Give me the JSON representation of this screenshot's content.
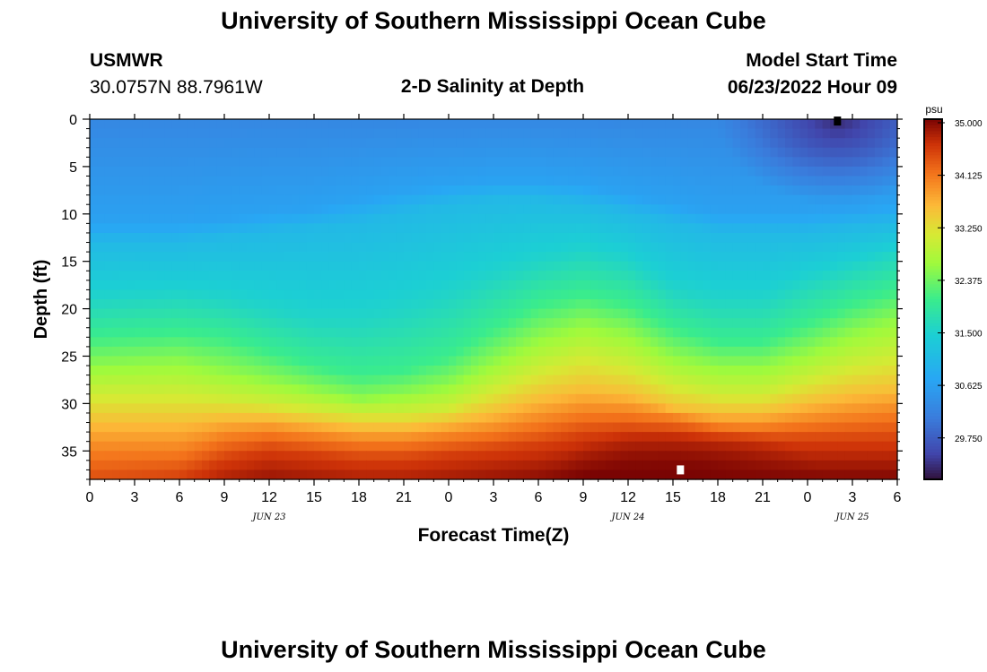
{
  "header": {
    "title": "University of Southern Mississippi Ocean Cube",
    "station": "USMWR",
    "coords": "30.0757N  88.7961W",
    "plot_title": "2-D Salinity at Depth",
    "model_label": "Model Start Time",
    "model_time": "06/23/2022 Hour 09"
  },
  "footer": {
    "title": "University of Southern Mississippi Ocean Cube"
  },
  "chart_data": {
    "type": "heatmap",
    "title": "2-D Salinity at Depth",
    "xlabel": "Forecast Time(Z)",
    "ylabel": "Depth (ft)",
    "x_ticks": [
      "0",
      "3",
      "6",
      "9",
      "12",
      "15",
      "18",
      "21",
      "0",
      "3",
      "6",
      "9",
      "12",
      "15",
      "18",
      "21",
      "0",
      "3",
      "6"
    ],
    "x_range_hours": [
      0,
      54
    ],
    "date_labels": [
      {
        "label": "JUN 23",
        "hour": 12
      },
      {
        "label": "JUN 24",
        "hour": 36
      },
      {
        "label": "JUN 25",
        "hour": 51
      }
    ],
    "y_ticks": [
      "0",
      "5",
      "10",
      "15",
      "20",
      "25",
      "30",
      "35"
    ],
    "y_range_ft": [
      0,
      38
    ],
    "y_inverted": true,
    "colorbar": {
      "unit": "psu",
      "min": 29.0,
      "max": 35.0,
      "ticks": [
        "35.000",
        "34.125",
        "33.250",
        "32.375",
        "31.500",
        "30.625",
        "29.750"
      ]
    },
    "contours": {
      "hours": [
        0,
        6,
        9,
        12,
        15,
        18,
        21,
        24,
        27,
        30,
        33,
        36,
        39,
        42,
        45,
        48,
        51,
        54
      ],
      "isolines": [
        {
          "salinity": 30.6,
          "depth_ft": [
            11,
            11,
            10.5,
            10,
            9.5,
            8.5,
            7.5,
            7,
            6.5,
            6.5,
            7,
            8,
            9,
            10,
            10,
            10,
            9.5,
            9
          ]
        },
        {
          "salinity": 31.0,
          "depth_ft": [
            13,
            13,
            12.5,
            12,
            11.5,
            11,
            10,
            9,
            8.5,
            8.5,
            9,
            10,
            11,
            12,
            12,
            12,
            11.5,
            11
          ]
        },
        {
          "salinity": 31.5,
          "depth_ft": [
            19,
            18.5,
            19,
            20,
            21,
            21,
            20,
            18.5,
            16.5,
            15,
            14,
            15,
            18,
            19,
            19,
            17,
            15.5,
            14
          ]
        },
        {
          "salinity": 32.0,
          "depth_ft": [
            23,
            22.5,
            23,
            24.5,
            26,
            27,
            26.5,
            25,
            22,
            19.5,
            18.5,
            19.5,
            22,
            23.5,
            23.5,
            21.5,
            19.5,
            18
          ]
        },
        {
          "salinity": 32.5,
          "depth_ft": [
            26,
            25.5,
            26.5,
            27.5,
            28.5,
            29.5,
            29,
            28,
            25.5,
            23,
            21.5,
            22.5,
            25,
            26,
            26,
            24.5,
            22.5,
            21
          ]
        },
        {
          "salinity": 33.0,
          "depth_ft": [
            29,
            29,
            29.5,
            30,
            30.5,
            31,
            31,
            30.5,
            28.5,
            26.5,
            25,
            26,
            28,
            29,
            29,
            27.5,
            26,
            25
          ]
        },
        {
          "salinity": 33.5,
          "depth_ft": [
            32,
            32,
            31.5,
            31.5,
            32,
            32.5,
            32.5,
            32,
            31,
            29.5,
            28.5,
            29,
            30.5,
            31,
            31,
            30,
            29,
            28.5
          ]
        },
        {
          "salinity": 34.0,
          "depth_ft": [
            35,
            35,
            33.5,
            33,
            33.5,
            34,
            34,
            33.5,
            33,
            32,
            31,
            31,
            31.5,
            32.5,
            32.5,
            32,
            31.5,
            31
          ]
        },
        {
          "salinity": 34.5,
          "depth_ft": [
            39,
            38,
            36,
            35,
            35.5,
            36,
            36,
            35.5,
            35,
            34.5,
            33.5,
            33,
            33.5,
            34,
            34,
            34,
            34,
            34
          ]
        }
      ],
      "low_pocket": {
        "salinity_min": 29.2,
        "hour_center": 50,
        "depth_center_ft": 0,
        "hour_radius": 8,
        "depth_radius_ft": 9
      },
      "high_pocket": {
        "salinity_max": 35.0,
        "hour_center": 40,
        "depth_center_ft": 38,
        "hour_radius": 9,
        "depth_radius_ft": 6
      }
    },
    "markers": [
      {
        "hour": 50,
        "depth_ft": 0.2,
        "color": "#000000"
      },
      {
        "hour": 39.5,
        "depth_ft": 37,
        "color": "#ffffff"
      }
    ]
  }
}
